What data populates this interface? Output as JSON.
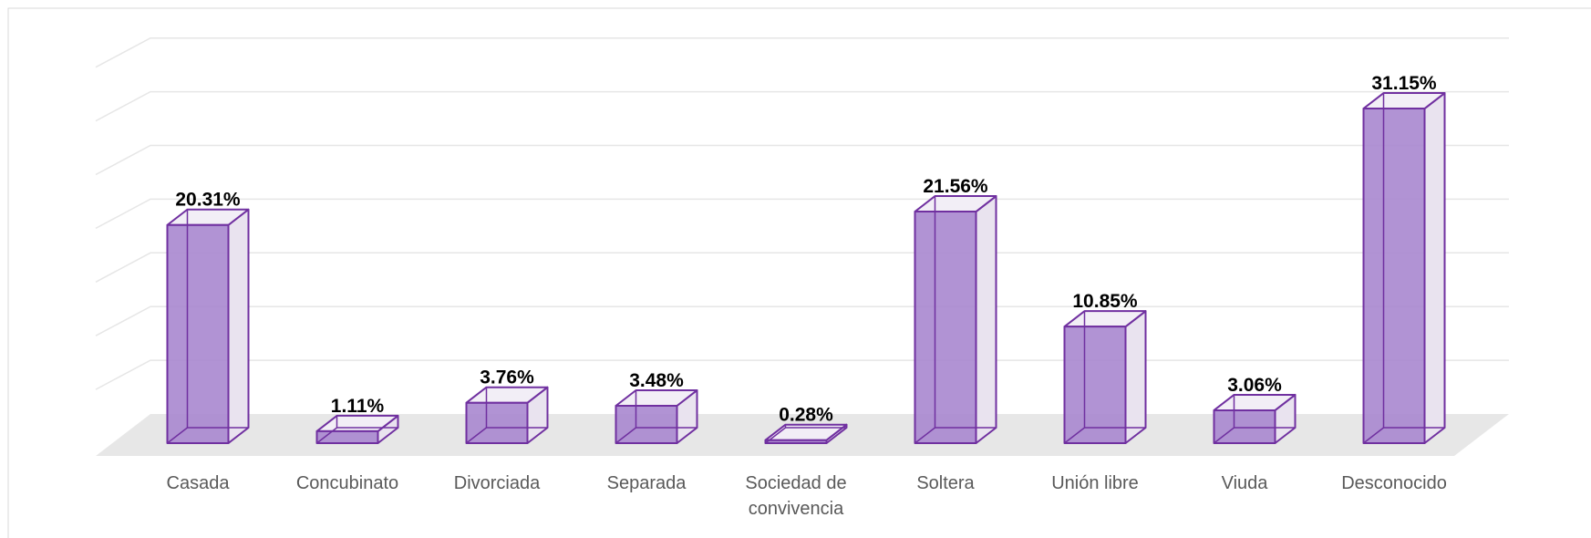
{
  "chart_data": {
    "type": "bar3d",
    "categories": [
      "Casada",
      "Concubinato",
      "Divorciada",
      "Separada",
      "Sociedad de convivencia",
      "Soltera",
      "Unión libre",
      "Viuda",
      "Desconocido"
    ],
    "values": [
      20.31,
      1.11,
      3.76,
      3.48,
      0.28,
      21.56,
      10.85,
      3.06,
      31.15
    ],
    "value_labels": [
      "20.31%",
      "1.11%",
      "3.76%",
      "3.48%",
      "0.28%",
      "21.56%",
      "10.85%",
      "3.06%",
      "31.15%"
    ],
    "color": "#a987cf",
    "edge_color": "#7030a0",
    "ylim": [
      0,
      35
    ],
    "yticks": [
      0,
      5,
      10,
      15,
      20,
      25,
      30,
      35
    ],
    "grid": true
  }
}
